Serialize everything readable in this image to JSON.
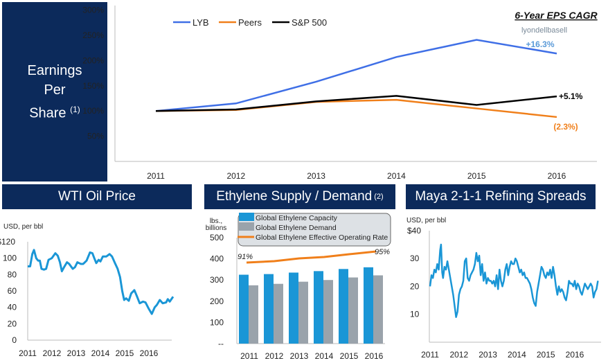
{
  "eps_panel": {
    "title_lines": [
      "Earnings",
      "Per",
      "Share"
    ],
    "footnote": "(1)"
  },
  "wti_panel": {
    "title": "WTI Oil  Price"
  },
  "ethylene_panel": {
    "title": "Ethylene Supply / Demand",
    "footnote": "(2)"
  },
  "maya_panel": {
    "title": "Maya 2-1-1 Refining Spreads"
  },
  "colors": {
    "navy": "#0c2a5b",
    "lyb": "#3f6fe6",
    "peers": "#f07f1a",
    "sp500": "#000000",
    "cyan": "#1a96d6",
    "gray": "#9aa3ab"
  },
  "chart_data": [
    {
      "type": "line",
      "name": "eps",
      "categories": [
        "2011",
        "2012",
        "2013",
        "2014",
        "2015",
        "2016"
      ],
      "yticks": [
        "50%",
        "100%",
        "150%",
        "200%",
        "250%",
        "300%"
      ],
      "ylim": [
        0,
        300
      ],
      "legend_position": "top",
      "series": [
        {
          "name": "LYB",
          "color": "#3f6fe6",
          "values": [
            100,
            115,
            158,
            207,
            241,
            214
          ],
          "end_label": "+16.3%"
        },
        {
          "name": "Peers",
          "color": "#f07f1a",
          "values": [
            100,
            102,
            118,
            122,
            105,
            88
          ],
          "end_label": "(2.3%)"
        },
        {
          "name": "S&P 500",
          "color": "#000000",
          "values": [
            100,
            103,
            119,
            130,
            112,
            129
          ],
          "end_label": "+5.1%"
        }
      ],
      "annotation": {
        "title": "6-Year EPS CAGR",
        "logo_text": "lyondellbasell"
      }
    },
    {
      "type": "line",
      "name": "wti",
      "ylabel": "USD, per bbl",
      "yticks": [
        "0",
        "20",
        "40",
        "60",
        "80",
        "100",
        "$120"
      ],
      "ylim": [
        0,
        120
      ],
      "xticks": [
        "2011",
        "2012",
        "2013",
        "2014",
        "2015",
        "2016"
      ],
      "xlim": [
        2011,
        2017
      ],
      "x": [
        2011.0,
        2011.1,
        2011.19,
        2011.26,
        2011.35,
        2011.43,
        2011.5,
        2011.57,
        2011.67,
        2011.76,
        2011.86,
        2011.995,
        2012.14,
        2012.24,
        2012.33,
        2012.41,
        2012.5,
        2012.62,
        2012.71,
        2012.86,
        2012.95,
        2013.05,
        2013.19,
        2013.29,
        2013.43,
        2013.57,
        2013.67,
        2013.76,
        2013.83,
        2013.93,
        2014.0,
        2014.1,
        2014.24,
        2014.38,
        2014.48,
        2014.6,
        2014.71,
        2014.81,
        2014.9,
        2014.98,
        2015.06,
        2015.17,
        2015.27,
        2015.4,
        2015.5,
        2015.62,
        2015.76,
        2015.86,
        2016.0,
        2016.12,
        2016.24,
        2016.33,
        2016.45,
        2016.57,
        2016.71,
        2016.78,
        2016.86,
        2017.0
      ],
      "values": [
        90,
        90,
        105,
        110,
        100,
        97,
        97,
        87,
        86,
        87,
        98,
        100,
        106,
        103,
        95,
        84,
        89,
        95,
        93,
        87,
        89,
        95,
        93,
        93,
        97,
        107,
        106,
        99,
        94,
        98,
        96,
        102,
        102,
        105,
        102,
        94,
        87,
        77,
        60,
        49,
        51,
        48,
        57,
        61,
        54,
        45,
        47,
        46,
        38,
        32,
        40,
        43,
        49,
        45,
        46,
        50,
        47,
        53
      ]
    },
    {
      "type": "bar",
      "name": "ethylene",
      "ylabel": "lbs., billions",
      "yticks": [
        "--",
        "100",
        "200",
        "300",
        "400",
        "500"
      ],
      "ylim": [
        0,
        500
      ],
      "categories": [
        "2011",
        "2012",
        "2013",
        "2014",
        "2015",
        "2016"
      ],
      "series": [
        {
          "name": "Global Ethylene Capacity",
          "color": "#1a96d6",
          "values": [
            325,
            328,
            335,
            342,
            352,
            360
          ]
        },
        {
          "name": "Global Ethylene Demand",
          "color": "#9aa3ab",
          "values": [
            275,
            282,
            292,
            300,
            312,
            322
          ]
        },
        {
          "name": "Global Ethylene Effective Operating Rate",
          "color": "#f07f1a",
          "type": "line",
          "values": [
            91,
            91.5,
            92.5,
            93,
            94,
            95
          ],
          "start_label": "91%",
          "end_label": "95%"
        }
      ],
      "legend_position": "top"
    },
    {
      "type": "line",
      "name": "maya",
      "ylabel": "USD, per bbl",
      "yticks": [
        "10",
        "20",
        "30",
        "$40"
      ],
      "ylim": [
        0,
        40
      ],
      "xticks": [
        "2011",
        "2012",
        "2013",
        "2014",
        "2015",
        "2016"
      ],
      "xlim": [
        2011,
        2017
      ],
      "values_by_time": [
        [
          2011.0,
          20
        ],
        [
          2011.05,
          24
        ],
        [
          2011.1,
          23
        ],
        [
          2011.15,
          26
        ],
        [
          2011.2,
          25
        ],
        [
          2011.25,
          28
        ],
        [
          2011.3,
          26
        ],
        [
          2011.35,
          33
        ],
        [
          2011.38,
          35
        ],
        [
          2011.42,
          25
        ],
        [
          2011.45,
          23
        ],
        [
          2011.5,
          27
        ],
        [
          2011.55,
          26
        ],
        [
          2011.6,
          29
        ],
        [
          2011.65,
          26
        ],
        [
          2011.7,
          23
        ],
        [
          2011.75,
          20
        ],
        [
          2011.8,
          17
        ],
        [
          2011.85,
          13
        ],
        [
          2011.9,
          9
        ],
        [
          2011.95,
          11
        ],
        [
          2012.0,
          17
        ],
        [
          2012.05,
          19
        ],
        [
          2012.1,
          20
        ],
        [
          2012.15,
          22
        ],
        [
          2012.2,
          29
        ],
        [
          2012.25,
          30
        ],
        [
          2012.3,
          23
        ],
        [
          2012.35,
          22
        ],
        [
          2012.4,
          24
        ],
        [
          2012.45,
          25
        ],
        [
          2012.5,
          26
        ],
        [
          2012.55,
          28
        ],
        [
          2012.6,
          32
        ],
        [
          2012.65,
          29
        ],
        [
          2012.7,
          31
        ],
        [
          2012.75,
          24
        ],
        [
          2012.8,
          28
        ],
        [
          2012.85,
          22
        ],
        [
          2012.9,
          25
        ],
        [
          2012.95,
          21
        ],
        [
          2013.0,
          23
        ],
        [
          2013.05,
          22
        ],
        [
          2013.1,
          22
        ],
        [
          2013.15,
          21
        ],
        [
          2013.2,
          22
        ],
        [
          2013.25,
          20
        ],
        [
          2013.3,
          24
        ],
        [
          2013.35,
          19
        ],
        [
          2013.4,
          26
        ],
        [
          2013.45,
          22
        ],
        [
          2013.5,
          20
        ],
        [
          2013.55,
          22
        ],
        [
          2013.6,
          26
        ],
        [
          2013.65,
          28
        ],
        [
          2013.7,
          24
        ],
        [
          2013.75,
          27
        ],
        [
          2013.8,
          29
        ],
        [
          2013.85,
          28
        ],
        [
          2013.9,
          28
        ],
        [
          2013.95,
          30
        ],
        [
          2014.0,
          29
        ],
        [
          2014.05,
          27
        ],
        [
          2014.1,
          25
        ],
        [
          2014.15,
          26
        ],
        [
          2014.2,
          24
        ],
        [
          2014.25,
          25
        ],
        [
          2014.3,
          23
        ],
        [
          2014.35,
          23
        ],
        [
          2014.4,
          22
        ],
        [
          2014.45,
          21
        ],
        [
          2014.5,
          19
        ],
        [
          2014.55,
          16
        ],
        [
          2014.6,
          14
        ],
        [
          2014.65,
          13
        ],
        [
          2014.7,
          18
        ],
        [
          2014.75,
          21
        ],
        [
          2014.8,
          24
        ],
        [
          2014.85,
          27
        ],
        [
          2014.9,
          26
        ],
        [
          2014.95,
          24
        ],
        [
          2015.0,
          23
        ],
        [
          2015.05,
          25
        ],
        [
          2015.1,
          24
        ],
        [
          2015.15,
          26
        ],
        [
          2015.2,
          23
        ],
        [
          2015.25,
          27
        ],
        [
          2015.3,
          24
        ],
        [
          2015.35,
          20
        ],
        [
          2015.4,
          17
        ],
        [
          2015.45,
          20
        ],
        [
          2015.5,
          18
        ],
        [
          2015.55,
          19
        ],
        [
          2015.6,
          18
        ],
        [
          2015.65,
          16
        ],
        [
          2015.7,
          15
        ],
        [
          2015.75,
          18
        ],
        [
          2015.8,
          22
        ],
        [
          2015.85,
          21
        ],
        [
          2015.9,
          21
        ],
        [
          2015.95,
          20
        ],
        [
          2016.0,
          22
        ],
        [
          2016.05,
          19
        ],
        [
          2016.1,
          21
        ],
        [
          2016.15,
          20
        ],
        [
          2016.2,
          18
        ],
        [
          2016.25,
          17
        ],
        [
          2016.3,
          19
        ],
        [
          2016.35,
          21
        ],
        [
          2016.4,
          20
        ],
        [
          2016.45,
          19
        ],
        [
          2016.5,
          20
        ],
        [
          2016.55,
          21
        ],
        [
          2016.6,
          20
        ],
        [
          2016.65,
          16
        ],
        [
          2016.7,
          18
        ],
        [
          2016.75,
          19
        ],
        [
          2016.8,
          22
        ]
      ]
    }
  ]
}
